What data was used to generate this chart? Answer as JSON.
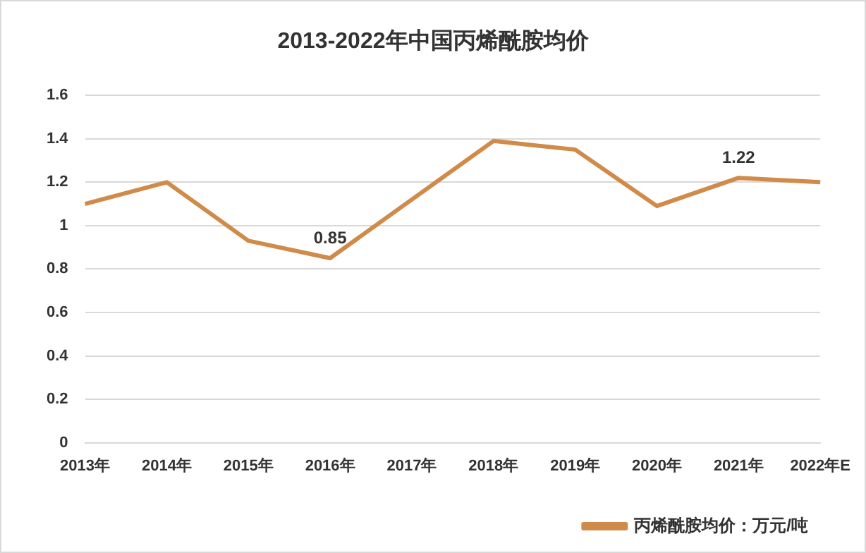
{
  "chart_data": {
    "type": "line",
    "title": "2013-2022年中国丙烯酰胺均价",
    "categories": [
      "2013年",
      "2014年",
      "2015年",
      "2016年",
      "2017年",
      "2018年",
      "2019年",
      "2020年",
      "2021年",
      "2022年E"
    ],
    "series": [
      {
        "name": "丙烯酰胺均价：万元/吨",
        "color": "#d08b4a",
        "values": [
          1.1,
          1.2,
          0.93,
          0.85,
          1.12,
          1.39,
          1.35,
          1.09,
          1.22,
          1.2
        ],
        "value_labels": [
          null,
          null,
          null,
          "0.85",
          null,
          null,
          null,
          null,
          "1.22",
          null
        ]
      }
    ],
    "ylim": [
      0,
      1.6
    ],
    "yticks": [
      0,
      0.2,
      0.4,
      0.6,
      0.8,
      1,
      1.2,
      1.4,
      1.6
    ],
    "grid": "y",
    "legend": "bottom",
    "marker": "none",
    "line_style": "solid"
  }
}
